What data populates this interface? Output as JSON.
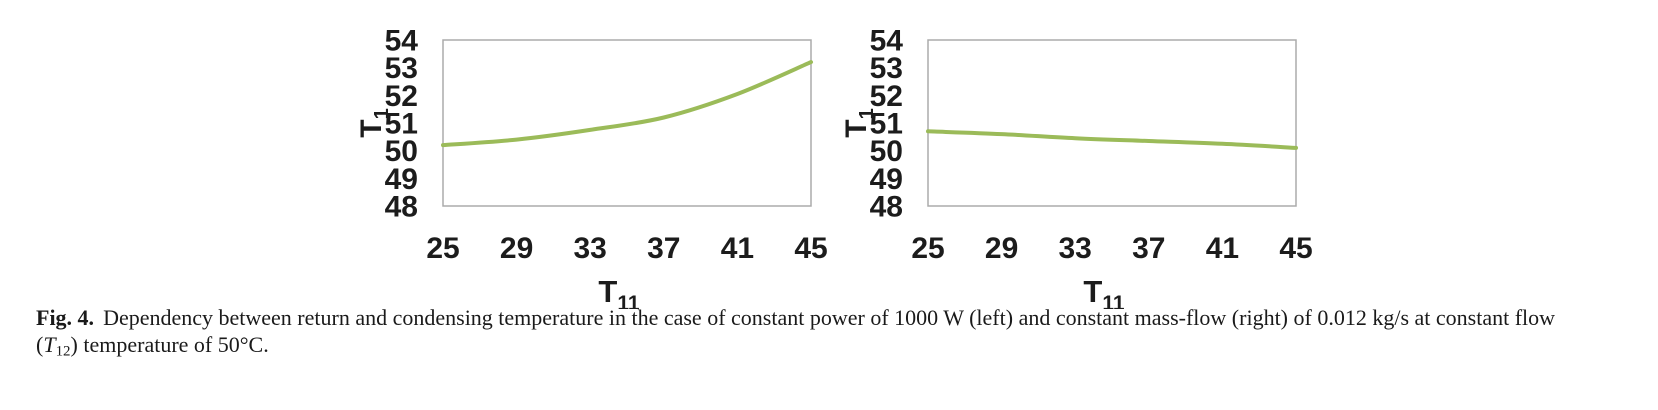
{
  "figure": {
    "caption": {
      "label": "Fig. 4.",
      "line1": "Dependency between return and condensing temperature in the case of constant power of 1000 W (left) and constant mass-flow (right) of 0.012 kg/s at constant flow",
      "line2_open": "(",
      "line2_t": "T",
      "line2_sub": "12",
      "line2_rest": ") temperature of 50°C."
    }
  },
  "colors": {
    "series_line": "#9BBB59",
    "plot_frame": "#ABABAB",
    "axis_text": "#1C1C1C"
  },
  "chart_data": [
    {
      "type": "line",
      "position": "left",
      "caption_condition": "constant power of 1000 W",
      "x": [
        25,
        29,
        33,
        37,
        41,
        45
      ],
      "y": [
        50.2,
        50.4,
        50.75,
        51.2,
        52.05,
        53.2
      ],
      "xlim": [
        25,
        45
      ],
      "ylim": [
        48,
        54
      ],
      "xticks": [
        25,
        29,
        33,
        37,
        41,
        45
      ],
      "yticks": [
        48,
        49,
        50,
        51,
        52,
        53,
        54
      ],
      "xlabel_base": "T",
      "xlabel_sub": "11",
      "ylabel_base": "T",
      "ylabel_sub": "1",
      "grid": false,
      "legend": "none",
      "line_color": "#9BBB59"
    },
    {
      "type": "line",
      "position": "right",
      "caption_condition": "constant mass-flow of 0.012 kg/s",
      "x": [
        25,
        29,
        33,
        37,
        41,
        45
      ],
      "y": [
        50.7,
        50.6,
        50.45,
        50.35,
        50.25,
        50.1
      ],
      "xlim": [
        25,
        45
      ],
      "ylim": [
        48,
        54
      ],
      "xticks": [
        25,
        29,
        33,
        37,
        41,
        45
      ],
      "yticks": [
        48,
        49,
        50,
        51,
        52,
        53,
        54
      ],
      "xlabel_base": "T",
      "xlabel_sub": "11",
      "ylabel_base": "T",
      "ylabel_sub": "1",
      "grid": false,
      "legend": "none",
      "line_color": "#9BBB59"
    }
  ]
}
